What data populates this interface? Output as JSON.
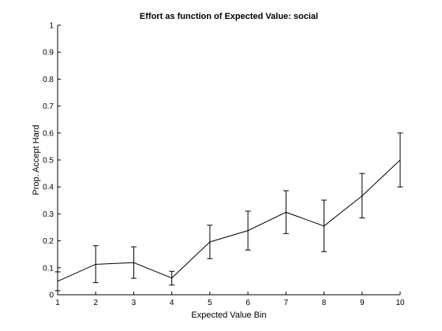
{
  "chart_data": {
    "type": "line",
    "title": "Effort as function of Expected Value: social",
    "xlabel": "Expected Value Bin",
    "ylabel": "Prop. Accept Hard",
    "xlim": [
      1,
      10
    ],
    "ylim": [
      0,
      1
    ],
    "xticks": [
      "1",
      "2",
      "3",
      "4",
      "5",
      "6",
      "7",
      "8",
      "9",
      "10"
    ],
    "yticks": [
      "0",
      "0.1",
      "0.2",
      "0.3",
      "0.4",
      "0.5",
      "0.6",
      "0.7",
      "0.8",
      "0.9",
      "1"
    ],
    "grid": false,
    "series": [
      {
        "x": [
          1,
          2,
          3,
          4,
          5,
          6,
          7,
          8,
          9,
          10
        ],
        "values": [
          0.05,
          0.113,
          0.119,
          0.062,
          0.196,
          0.238,
          0.306,
          0.255,
          0.367,
          0.5
        ],
        "err_low": [
          0.015,
          0.045,
          0.061,
          0.036,
          0.134,
          0.166,
          0.227,
          0.16,
          0.285,
          0.4
        ],
        "err_high": [
          0.085,
          0.182,
          0.178,
          0.087,
          0.258,
          0.31,
          0.386,
          0.351,
          0.45,
          0.6
        ],
        "color": "#000000"
      }
    ]
  }
}
